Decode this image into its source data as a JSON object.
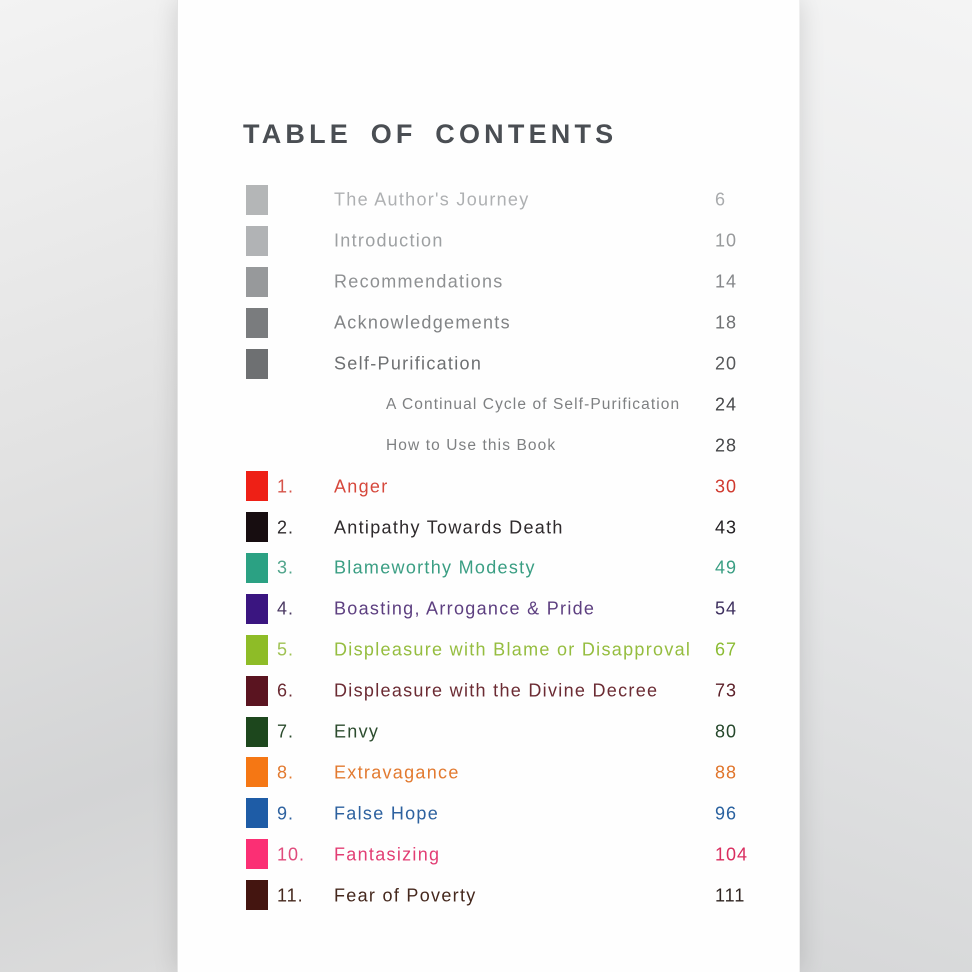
{
  "page": {
    "title": "TABLE OF CONTENTS",
    "title_color": "#4a4e53"
  },
  "toc": {
    "entries": [
      {
        "kind": "front",
        "title": "The Author's Journey",
        "page": "6",
        "swatch": "#b4b6b7",
        "title_color": "#aeb0b2",
        "page_color": "#a9abad"
      },
      {
        "kind": "front",
        "title": "Introduction",
        "page": "10",
        "swatch": "#b1b3b5",
        "title_color": "#9da0a2",
        "page_color": "#97999b"
      },
      {
        "kind": "front",
        "title": "Recommendations",
        "page": "14",
        "swatch": "#97999b",
        "title_color": "#8e9092",
        "page_color": "#85878a"
      },
      {
        "kind": "front",
        "title": "Acknowledgements",
        "page": "18",
        "swatch": "#7a7c7e",
        "title_color": "#828486",
        "page_color": "#6f7173"
      },
      {
        "kind": "front",
        "title": "Self-Purification",
        "page": "20",
        "swatch": "#6e7072",
        "title_color": "#6e7072",
        "page_color": "#56585a"
      },
      {
        "kind": "sub",
        "title": "A Continual Cycle of Self-Purification",
        "page": "24",
        "title_color": "#7e8082",
        "page_color": "#47484a"
      },
      {
        "kind": "sub",
        "title": "How to Use this Book",
        "page": "28",
        "title_color": "#7e8082",
        "page_color": "#47484a"
      },
      {
        "kind": "chapter",
        "number": "1.",
        "title": "Anger",
        "page": "30",
        "swatch": "#ee2016",
        "num_color": "#d6544a",
        "title_color": "#d6483c",
        "page_color": "#d0392e"
      },
      {
        "kind": "chapter",
        "number": "2.",
        "title": "Antipathy Towards Death",
        "page": "43",
        "swatch": "#170d10",
        "num_color": "#2e2a2c",
        "title_color": "#2e2a2c",
        "page_color": "#232023"
      },
      {
        "kind": "chapter",
        "number": "3.",
        "title": "Blameworthy Modesty",
        "page": "49",
        "swatch": "#2ba183",
        "num_color": "#51a58c",
        "title_color": "#3a9e83",
        "page_color": "#3a9e83"
      },
      {
        "kind": "chapter",
        "number": "4.",
        "title": "Boasting, Arrogance & Pride",
        "page": "54",
        "swatch": "#3a1580",
        "num_color": "#4b3a63",
        "title_color": "#5d3f80",
        "page_color": "#3d2f5e"
      },
      {
        "kind": "chapter",
        "number": "5.",
        "title": "Displeasure with Blame or Disapproval",
        "page": "67",
        "swatch": "#8ebc27",
        "num_color": "#9fc253",
        "title_color": "#95bd3f",
        "page_color": "#8cbc34"
      },
      {
        "kind": "chapter",
        "number": "6.",
        "title": "Displeasure with the Divine Decree",
        "page": "73",
        "swatch": "#5a1420",
        "num_color": "#6b2b33",
        "title_color": "#6b2b33",
        "page_color": "#5c2029"
      },
      {
        "kind": "chapter",
        "number": "7.",
        "title": "Envy",
        "page": "80",
        "swatch": "#1d471d",
        "num_color": "#2c4c2e",
        "title_color": "#2c4c2e",
        "page_color": "#24462a"
      },
      {
        "kind": "chapter",
        "number": "8.",
        "title": "Extravagance",
        "page": "88",
        "swatch": "#f57714",
        "num_color": "#e27a30",
        "title_color": "#e27a30",
        "page_color": "#e0742a"
      },
      {
        "kind": "chapter",
        "number": "9.",
        "title": "False Hope",
        "page": "96",
        "swatch": "#1e5ca6",
        "num_color": "#2d619f",
        "title_color": "#2d619f",
        "page_color": "#29619f"
      },
      {
        "kind": "chapter",
        "number": "10.",
        "title": "Fantasizing",
        "page": "104",
        "swatch": "#fb2f74",
        "num_color": "#e04b7c",
        "title_color": "#e23e74",
        "page_color": "#d92d5f"
      },
      {
        "kind": "chapter",
        "number": "11.",
        "title": "Fear of Poverty",
        "page": "111",
        "swatch": "#441510",
        "num_color": "#45281d",
        "title_color": "#45281d",
        "page_color": "#2f2420"
      }
    ]
  }
}
